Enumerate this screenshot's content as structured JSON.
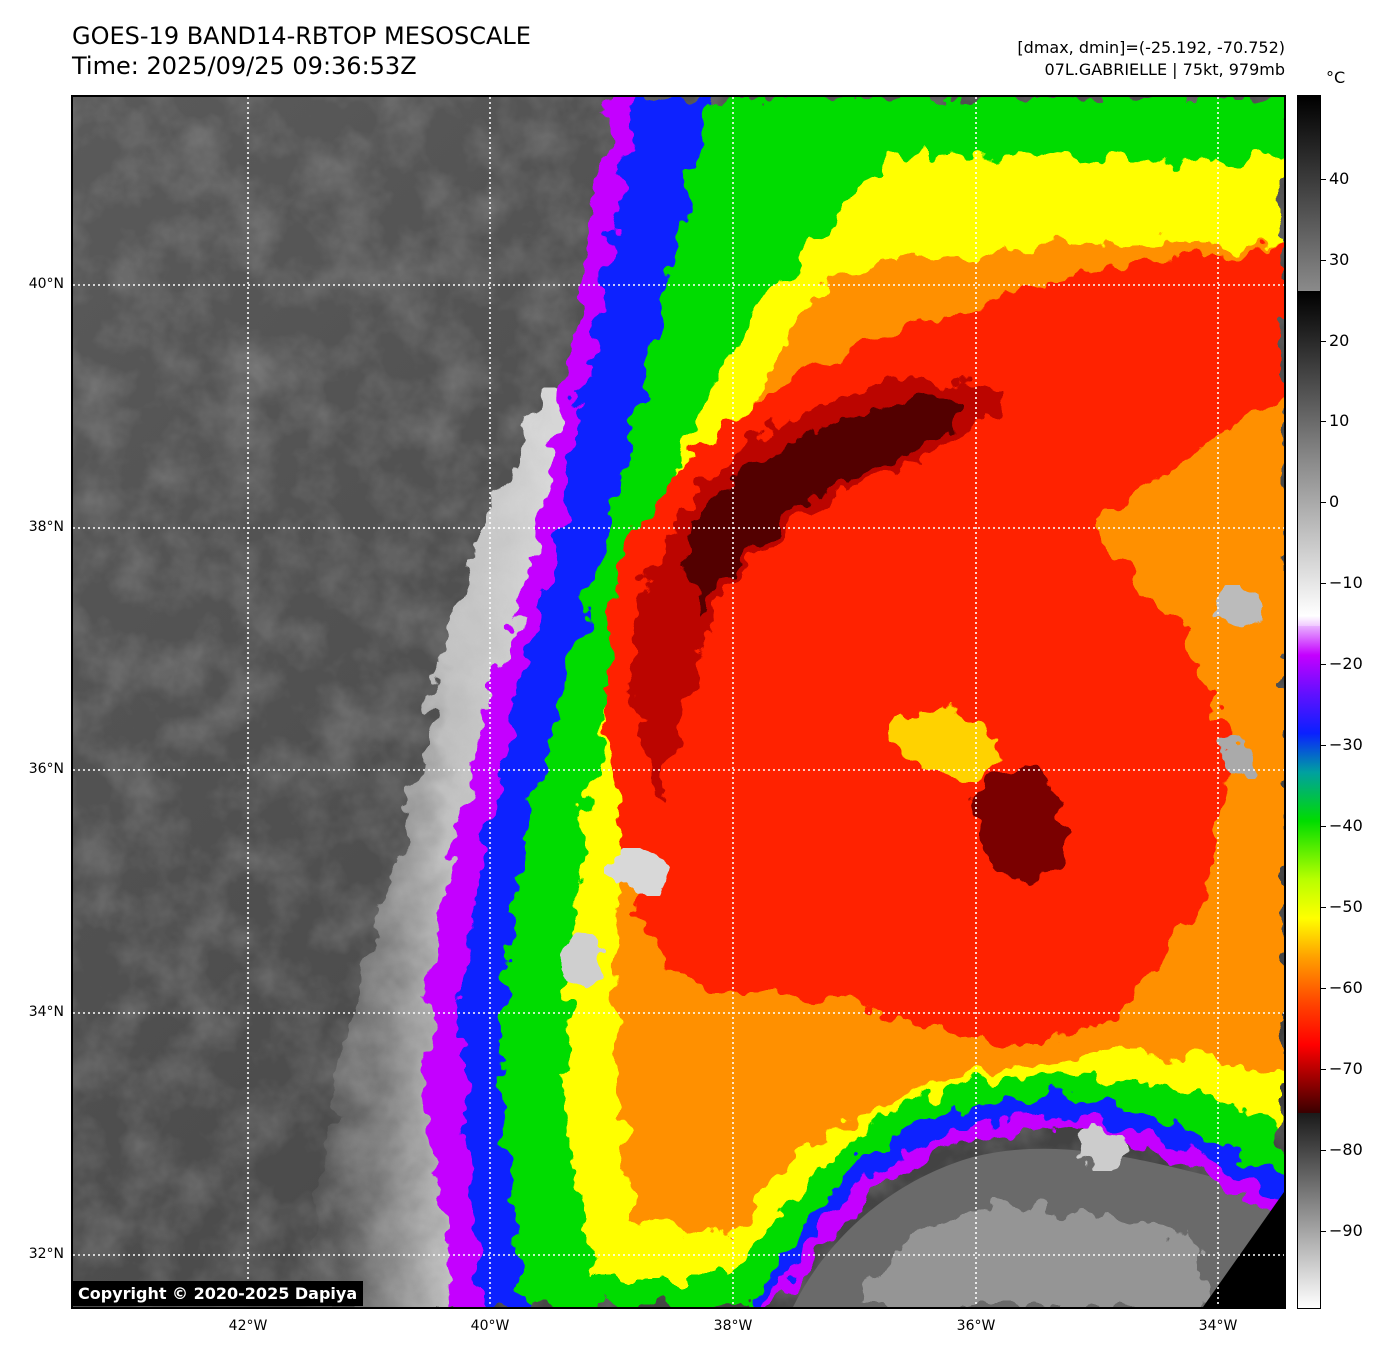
{
  "header": {
    "title_line1": "GOES-19 BAND14-RBTOP MESOSCALE",
    "title_line2": "Time: 2025/09/25 09:36:53Z",
    "stat_line1": "[dmax, dmin]=(-25.192, -70.752)",
    "stat_line2": "07L.GABRIELLE | 75kt, 979mb"
  },
  "map": {
    "lat_labels": [
      "40°N",
      "38°N",
      "36°N",
      "34°N",
      "32°N"
    ],
    "lon_labels": [
      "42°W",
      "40°W",
      "38°W",
      "36°W",
      "34°W"
    ],
    "copyright": "Copyright © 2020-2025 Dapiya"
  },
  "colorbar": {
    "unit": "°C",
    "tick_labels": [
      "40",
      "30",
      "20",
      "10",
      "0",
      "−10",
      "−20",
      "−30",
      "−40",
      "−50",
      "−60",
      "−70",
      "−80",
      "−90"
    ],
    "colors": {
      "warm_black": "#000000",
      "gray": "#888888",
      "white": "#ffffff",
      "magenta": "#c400ff",
      "blue": "#0a20ff",
      "green": "#00dc00",
      "yellow": "#ffff00",
      "orange": "#ff9000",
      "red": "#ff2000",
      "dark_red": "#520000"
    }
  }
}
